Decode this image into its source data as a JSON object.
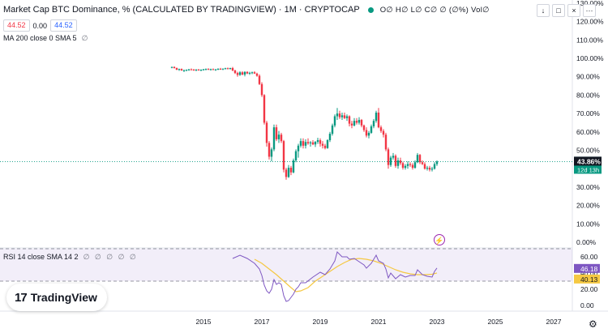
{
  "header": {
    "title": "Market Cap BTC Dominance, % (CALCULATED BY TRADINGVIEW) · 1M · CRYPTOCAP",
    "status_color": "#089981",
    "ohlc": "O∅ H∅ L∅ C∅ ∅ (∅%) Vol∅"
  },
  "quote": {
    "bid": "44.52",
    "spread": "0.00",
    "ask": "44.52",
    "bid_color": "#f23645",
    "ask_color": "#2962ff"
  },
  "indicators": {
    "ma_label": "MA 200 close 0 SMA 5",
    "ma_eye": "∅",
    "rsi_label": "RSI 14 close SMA 14 2",
    "rsi_eye": "∅ ∅ ∅ ∅ ∅"
  },
  "controls": {
    "collapse": "↓",
    "maximize": "□",
    "close": "×",
    "more": "···"
  },
  "event_icon": "⚡",
  "settings_icon": "⚙",
  "brand": {
    "mark": "17",
    "name": "TradingView"
  },
  "chart_data": {
    "type": "candlestick",
    "colors": {
      "up": "#089981",
      "down": "#f23645",
      "rsi": "#7e57c2",
      "rsi_ma": "#f5c842",
      "price_line": "#089981"
    },
    "x_axis_labels": [
      "2015",
      "2017",
      "2019",
      "2021",
      "2023",
      "2025",
      "2027"
    ],
    "price_axis": {
      "ticks": [
        "130.00%",
        "120.00%",
        "110.00%",
        "100.00%",
        "90.00%",
        "80.00%",
        "70.00%",
        "60.00%",
        "50.00%",
        "40.00%",
        "30.00%",
        "20.00%",
        "10.00%",
        "0.00%"
      ],
      "range": [
        0,
        130
      ]
    },
    "current_price": {
      "label": "43.86%",
      "value": 43.86,
      "countdown": "12d 13h"
    },
    "rsi_axis": {
      "ticks": [
        "60.00",
        "40.00",
        "20.00",
        "0.00"
      ],
      "range": [
        0,
        75
      ],
      "band": [
        30,
        70
      ]
    },
    "rsi_values": {
      "rsi": "46.18",
      "rsi_color": "#7e57c2",
      "ma": "40.13",
      "ma_color": "#f5c842"
    },
    "candles": [
      {
        "t": 2013.917,
        "o": 95.0,
        "h": 95.5,
        "l": 94.6,
        "c": 95.3
      },
      {
        "t": 2014.0,
        "o": 95.3,
        "h": 95.6,
        "l": 94.5,
        "c": 94.7
      },
      {
        "t": 2014.083,
        "o": 94.7,
        "h": 95.0,
        "l": 93.6,
        "c": 93.8
      },
      {
        "t": 2014.167,
        "o": 93.8,
        "h": 94.4,
        "l": 93.2,
        "c": 94.2
      },
      {
        "t": 2014.25,
        "o": 94.2,
        "h": 94.5,
        "l": 93.2,
        "c": 93.4
      },
      {
        "t": 2014.333,
        "o": 93.4,
        "h": 93.9,
        "l": 92.6,
        "c": 93.5
      },
      {
        "t": 2014.417,
        "o": 93.5,
        "h": 94.0,
        "l": 93.0,
        "c": 93.7
      },
      {
        "t": 2014.5,
        "o": 93.7,
        "h": 94.3,
        "l": 93.2,
        "c": 94.0
      },
      {
        "t": 2014.583,
        "o": 94.0,
        "h": 94.5,
        "l": 93.5,
        "c": 93.9
      },
      {
        "t": 2014.667,
        "o": 93.9,
        "h": 94.2,
        "l": 93.2,
        "c": 93.6
      },
      {
        "t": 2014.75,
        "o": 93.6,
        "h": 94.1,
        "l": 93.0,
        "c": 93.9
      },
      {
        "t": 2014.833,
        "o": 93.9,
        "h": 94.2,
        "l": 93.3,
        "c": 93.5
      },
      {
        "t": 2014.917,
        "o": 93.5,
        "h": 94.0,
        "l": 93.0,
        "c": 93.8
      },
      {
        "t": 2015.0,
        "o": 93.8,
        "h": 94.3,
        "l": 93.4,
        "c": 94.0
      },
      {
        "t": 2015.083,
        "o": 94.0,
        "h": 94.5,
        "l": 93.5,
        "c": 94.2
      },
      {
        "t": 2015.167,
        "o": 94.2,
        "h": 94.6,
        "l": 93.7,
        "c": 93.9
      },
      {
        "t": 2015.25,
        "o": 93.9,
        "h": 94.4,
        "l": 93.4,
        "c": 94.1
      },
      {
        "t": 2015.333,
        "o": 94.1,
        "h": 94.5,
        "l": 93.6,
        "c": 93.8
      },
      {
        "t": 2015.417,
        "o": 93.8,
        "h": 94.2,
        "l": 93.2,
        "c": 94.0
      },
      {
        "t": 2015.5,
        "o": 94.0,
        "h": 94.6,
        "l": 93.6,
        "c": 94.3
      },
      {
        "t": 2015.583,
        "o": 94.3,
        "h": 94.8,
        "l": 93.8,
        "c": 94.1
      },
      {
        "t": 2015.667,
        "o": 94.1,
        "h": 94.5,
        "l": 93.6,
        "c": 94.4
      },
      {
        "t": 2015.75,
        "o": 94.4,
        "h": 94.9,
        "l": 94.0,
        "c": 94.6
      },
      {
        "t": 2015.833,
        "o": 94.6,
        "h": 95.0,
        "l": 94.0,
        "c": 94.3
      },
      {
        "t": 2015.917,
        "o": 94.3,
        "h": 94.9,
        "l": 93.9,
        "c": 94.7
      },
      {
        "t": 2016.0,
        "o": 94.7,
        "h": 95.3,
        "l": 93.0,
        "c": 93.4
      },
      {
        "t": 2016.083,
        "o": 93.4,
        "h": 93.8,
        "l": 91.5,
        "c": 92.0
      },
      {
        "t": 2016.167,
        "o": 92.0,
        "h": 92.7,
        "l": 90.0,
        "c": 91.0
      },
      {
        "t": 2016.25,
        "o": 91.0,
        "h": 93.0,
        "l": 90.5,
        "c": 92.4
      },
      {
        "t": 2016.333,
        "o": 92.4,
        "h": 93.0,
        "l": 90.8,
        "c": 91.2
      },
      {
        "t": 2016.417,
        "o": 91.2,
        "h": 93.0,
        "l": 90.2,
        "c": 92.6
      },
      {
        "t": 2016.5,
        "o": 92.6,
        "h": 93.0,
        "l": 91.4,
        "c": 91.8
      },
      {
        "t": 2016.583,
        "o": 91.8,
        "h": 92.7,
        "l": 91.0,
        "c": 92.1
      },
      {
        "t": 2016.667,
        "o": 92.1,
        "h": 92.8,
        "l": 91.4,
        "c": 92.4
      },
      {
        "t": 2016.75,
        "o": 92.4,
        "h": 93.0,
        "l": 91.5,
        "c": 91.7
      },
      {
        "t": 2016.833,
        "o": 91.7,
        "h": 92.2,
        "l": 90.0,
        "c": 90.5
      },
      {
        "t": 2016.917,
        "o": 90.5,
        "h": 91.3,
        "l": 85.5,
        "c": 86.0
      },
      {
        "t": 2017.0,
        "o": 86.0,
        "h": 87.0,
        "l": 79.0,
        "c": 80.0
      },
      {
        "t": 2017.083,
        "o": 80.0,
        "h": 80.5,
        "l": 64.0,
        "c": 65.0
      },
      {
        "t": 2017.167,
        "o": 65.0,
        "h": 66.0,
        "l": 52.0,
        "c": 54.0
      },
      {
        "t": 2017.25,
        "o": 54.0,
        "h": 55.0,
        "l": 45.0,
        "c": 46.5
      },
      {
        "t": 2017.333,
        "o": 46.5,
        "h": 51.5,
        "l": 44.0,
        "c": 50.5
      },
      {
        "t": 2017.417,
        "o": 50.5,
        "h": 64.0,
        "l": 49.5,
        "c": 62.5
      },
      {
        "t": 2017.5,
        "o": 62.5,
        "h": 64.0,
        "l": 55.0,
        "c": 56.0
      },
      {
        "t": 2017.583,
        "o": 56.0,
        "h": 60.5,
        "l": 54.0,
        "c": 58.5
      },
      {
        "t": 2017.667,
        "o": 58.5,
        "h": 59.5,
        "l": 54.0,
        "c": 55.0
      },
      {
        "t": 2017.75,
        "o": 55.0,
        "h": 55.6,
        "l": 38.0,
        "c": 39.5
      },
      {
        "t": 2017.833,
        "o": 39.5,
        "h": 40.5,
        "l": 34.0,
        "c": 35.5
      },
      {
        "t": 2017.917,
        "o": 35.5,
        "h": 42.0,
        "l": 35.0,
        "c": 40.5
      },
      {
        "t": 2018.0,
        "o": 40.5,
        "h": 41.5,
        "l": 36.5,
        "c": 38.0
      },
      {
        "t": 2018.083,
        "o": 38.0,
        "h": 45.5,
        "l": 37.5,
        "c": 44.5
      },
      {
        "t": 2018.167,
        "o": 44.5,
        "h": 50.5,
        "l": 43.5,
        "c": 49.5
      },
      {
        "t": 2018.25,
        "o": 49.5,
        "h": 53.5,
        "l": 46.0,
        "c": 52.5
      },
      {
        "t": 2018.333,
        "o": 52.5,
        "h": 56.5,
        "l": 51.5,
        "c": 55.0
      },
      {
        "t": 2018.417,
        "o": 55.0,
        "h": 56.5,
        "l": 51.0,
        "c": 52.5
      },
      {
        "t": 2018.5,
        "o": 52.5,
        "h": 56.0,
        "l": 51.0,
        "c": 54.5
      },
      {
        "t": 2018.583,
        "o": 54.5,
        "h": 56.5,
        "l": 53.0,
        "c": 53.8
      },
      {
        "t": 2018.667,
        "o": 53.8,
        "h": 55.0,
        "l": 52.0,
        "c": 54.3
      },
      {
        "t": 2018.75,
        "o": 54.3,
        "h": 55.5,
        "l": 52.8,
        "c": 53.2
      },
      {
        "t": 2018.833,
        "o": 53.2,
        "h": 55.0,
        "l": 51.8,
        "c": 54.6
      },
      {
        "t": 2018.917,
        "o": 54.6,
        "h": 56.8,
        "l": 53.5,
        "c": 55.5
      },
      {
        "t": 2019.0,
        "o": 55.5,
        "h": 56.5,
        "l": 52.0,
        "c": 53.5
      },
      {
        "t": 2019.083,
        "o": 53.5,
        "h": 55.0,
        "l": 51.0,
        "c": 52.5
      },
      {
        "t": 2019.167,
        "o": 52.5,
        "h": 53.5,
        "l": 50.5,
        "c": 51.2
      },
      {
        "t": 2019.25,
        "o": 51.2,
        "h": 56.0,
        "l": 50.8,
        "c": 55.5
      },
      {
        "t": 2019.333,
        "o": 55.5,
        "h": 60.0,
        "l": 54.5,
        "c": 59.0
      },
      {
        "t": 2019.417,
        "o": 59.0,
        "h": 64.5,
        "l": 58.0,
        "c": 63.5
      },
      {
        "t": 2019.5,
        "o": 63.5,
        "h": 69.5,
        "l": 62.5,
        "c": 68.5
      },
      {
        "t": 2019.583,
        "o": 68.5,
        "h": 73.0,
        "l": 66.5,
        "c": 70.0
      },
      {
        "t": 2019.667,
        "o": 70.0,
        "h": 71.5,
        "l": 67.0,
        "c": 68.0
      },
      {
        "t": 2019.75,
        "o": 68.0,
        "h": 70.5,
        "l": 66.5,
        "c": 69.0
      },
      {
        "t": 2019.833,
        "o": 69.0,
        "h": 70.5,
        "l": 67.0,
        "c": 67.5
      },
      {
        "t": 2019.917,
        "o": 67.5,
        "h": 69.5,
        "l": 66.0,
        "c": 68.5
      },
      {
        "t": 2020.0,
        "o": 68.5,
        "h": 69.0,
        "l": 63.0,
        "c": 64.5
      },
      {
        "t": 2020.083,
        "o": 64.5,
        "h": 66.0,
        "l": 62.0,
        "c": 63.5
      },
      {
        "t": 2020.167,
        "o": 63.5,
        "h": 67.5,
        "l": 63.0,
        "c": 66.0
      },
      {
        "t": 2020.25,
        "o": 66.0,
        "h": 67.5,
        "l": 64.0,
        "c": 65.0
      },
      {
        "t": 2020.333,
        "o": 65.0,
        "h": 68.0,
        "l": 64.0,
        "c": 66.5
      },
      {
        "t": 2020.417,
        "o": 66.5,
        "h": 67.0,
        "l": 62.5,
        "c": 63.5
      },
      {
        "t": 2020.5,
        "o": 63.5,
        "h": 64.0,
        "l": 60.0,
        "c": 61.0
      },
      {
        "t": 2020.583,
        "o": 61.0,
        "h": 62.5,
        "l": 57.0,
        "c": 58.0
      },
      {
        "t": 2020.667,
        "o": 58.0,
        "h": 60.5,
        "l": 56.5,
        "c": 59.5
      },
      {
        "t": 2020.75,
        "o": 59.5,
        "h": 64.0,
        "l": 59.0,
        "c": 63.0
      },
      {
        "t": 2020.833,
        "o": 63.0,
        "h": 67.0,
        "l": 62.0,
        "c": 66.0
      },
      {
        "t": 2020.917,
        "o": 66.0,
        "h": 71.5,
        "l": 65.0,
        "c": 70.5
      },
      {
        "t": 2021.0,
        "o": 70.5,
        "h": 73.0,
        "l": 62.0,
        "c": 62.5
      },
      {
        "t": 2021.083,
        "o": 62.5,
        "h": 63.5,
        "l": 59.5,
        "c": 60.5
      },
      {
        "t": 2021.167,
        "o": 60.5,
        "h": 61.5,
        "l": 57.0,
        "c": 58.5
      },
      {
        "t": 2021.25,
        "o": 58.5,
        "h": 59.5,
        "l": 49.5,
        "c": 50.5
      },
      {
        "t": 2021.333,
        "o": 50.5,
        "h": 51.5,
        "l": 40.0,
        "c": 42.0
      },
      {
        "t": 2021.417,
        "o": 42.0,
        "h": 47.0,
        "l": 41.0,
        "c": 46.0
      },
      {
        "t": 2021.5,
        "o": 46.0,
        "h": 48.5,
        "l": 45.0,
        "c": 47.0
      },
      {
        "t": 2021.583,
        "o": 47.0,
        "h": 47.8,
        "l": 40.5,
        "c": 41.5
      },
      {
        "t": 2021.667,
        "o": 41.5,
        "h": 46.0,
        "l": 40.0,
        "c": 44.5
      },
      {
        "t": 2021.75,
        "o": 44.5,
        "h": 46.0,
        "l": 42.0,
        "c": 43.0
      },
      {
        "t": 2021.833,
        "o": 43.0,
        "h": 43.8,
        "l": 39.5,
        "c": 40.5
      },
      {
        "t": 2021.917,
        "o": 40.5,
        "h": 42.5,
        "l": 39.5,
        "c": 41.5
      },
      {
        "t": 2022.0,
        "o": 41.5,
        "h": 44.0,
        "l": 40.0,
        "c": 42.5
      },
      {
        "t": 2022.083,
        "o": 42.5,
        "h": 43.5,
        "l": 41.0,
        "c": 42.0
      },
      {
        "t": 2022.167,
        "o": 42.0,
        "h": 43.0,
        "l": 39.5,
        "c": 40.5
      },
      {
        "t": 2022.25,
        "o": 40.5,
        "h": 44.5,
        "l": 40.0,
        "c": 43.5
      },
      {
        "t": 2022.333,
        "o": 43.5,
        "h": 48.5,
        "l": 43.0,
        "c": 47.5
      },
      {
        "t": 2022.417,
        "o": 47.5,
        "h": 48.0,
        "l": 42.5,
        "c": 43.5
      },
      {
        "t": 2022.5,
        "o": 43.5,
        "h": 44.5,
        "l": 42.0,
        "c": 42.5
      },
      {
        "t": 2022.583,
        "o": 42.5,
        "h": 43.5,
        "l": 39.5,
        "c": 40.0
      },
      {
        "t": 2022.667,
        "o": 40.0,
        "h": 41.5,
        "l": 39.0,
        "c": 40.5
      },
      {
        "t": 2022.75,
        "o": 40.5,
        "h": 41.5,
        "l": 38.5,
        "c": 39.5
      },
      {
        "t": 2022.833,
        "o": 39.5,
        "h": 41.0,
        "l": 38.5,
        "c": 40.0
      },
      {
        "t": 2022.917,
        "o": 40.0,
        "h": 43.5,
        "l": 39.5,
        "c": 42.5
      },
      {
        "t": 2023.0,
        "o": 42.5,
        "h": 44.5,
        "l": 41.5,
        "c": 43.86
      }
    ],
    "rsi_series": [
      {
        "t": 2016.0,
        "v": 58
      },
      {
        "t": 2016.25,
        "v": 62
      },
      {
        "t": 2016.5,
        "v": 58
      },
      {
        "t": 2016.75,
        "v": 52
      },
      {
        "t": 2016.917,
        "v": 45
      },
      {
        "t": 2017.0,
        "v": 37
      },
      {
        "t": 2017.083,
        "v": 25
      },
      {
        "t": 2017.167,
        "v": 18
      },
      {
        "t": 2017.25,
        "v": 15
      },
      {
        "t": 2017.333,
        "v": 20
      },
      {
        "t": 2017.417,
        "v": 32
      },
      {
        "t": 2017.5,
        "v": 26
      },
      {
        "t": 2017.583,
        "v": 28
      },
      {
        "t": 2017.667,
        "v": 26
      },
      {
        "t": 2017.75,
        "v": 12
      },
      {
        "t": 2017.833,
        "v": 5
      },
      {
        "t": 2017.917,
        "v": 6
      },
      {
        "t": 2018.0,
        "v": 10
      },
      {
        "t": 2018.083,
        "v": 14
      },
      {
        "t": 2018.167,
        "v": 20
      },
      {
        "t": 2018.25,
        "v": 23
      },
      {
        "t": 2018.333,
        "v": 28
      },
      {
        "t": 2018.5,
        "v": 28
      },
      {
        "t": 2018.75,
        "v": 35
      },
      {
        "t": 2019.0,
        "v": 41
      },
      {
        "t": 2019.167,
        "v": 38
      },
      {
        "t": 2019.333,
        "v": 45
      },
      {
        "t": 2019.5,
        "v": 55
      },
      {
        "t": 2019.583,
        "v": 66
      },
      {
        "t": 2019.75,
        "v": 60
      },
      {
        "t": 2019.917,
        "v": 60
      },
      {
        "t": 2020.0,
        "v": 57
      },
      {
        "t": 2020.167,
        "v": 58
      },
      {
        "t": 2020.333,
        "v": 54
      },
      {
        "t": 2020.5,
        "v": 50
      },
      {
        "t": 2020.583,
        "v": 46
      },
      {
        "t": 2020.75,
        "v": 52
      },
      {
        "t": 2020.917,
        "v": 62
      },
      {
        "t": 2021.0,
        "v": 55
      },
      {
        "t": 2021.167,
        "v": 52
      },
      {
        "t": 2021.25,
        "v": 45
      },
      {
        "t": 2021.333,
        "v": 34
      },
      {
        "t": 2021.417,
        "v": 40
      },
      {
        "t": 2021.583,
        "v": 33
      },
      {
        "t": 2021.75,
        "v": 38
      },
      {
        "t": 2021.917,
        "v": 35
      },
      {
        "t": 2022.083,
        "v": 37
      },
      {
        "t": 2022.25,
        "v": 37
      },
      {
        "t": 2022.333,
        "v": 44
      },
      {
        "t": 2022.5,
        "v": 38
      },
      {
        "t": 2022.667,
        "v": 36
      },
      {
        "t": 2022.833,
        "v": 35
      },
      {
        "t": 2022.917,
        "v": 42
      },
      {
        "t": 2023.0,
        "v": 46.18
      }
    ],
    "rsi_ma_series": [
      {
        "t": 2016.75,
        "v": 57
      },
      {
        "t": 2017.0,
        "v": 52
      },
      {
        "t": 2017.25,
        "v": 45
      },
      {
        "t": 2017.5,
        "v": 38
      },
      {
        "t": 2017.75,
        "v": 30
      },
      {
        "t": 2018.0,
        "v": 22
      },
      {
        "t": 2018.167,
        "v": 17
      },
      {
        "t": 2018.333,
        "v": 18
      },
      {
        "t": 2018.583,
        "v": 22
      },
      {
        "t": 2018.833,
        "v": 30
      },
      {
        "t": 2019.083,
        "v": 36
      },
      {
        "t": 2019.333,
        "v": 42
      },
      {
        "t": 2019.583,
        "v": 48
      },
      {
        "t": 2019.833,
        "v": 53
      },
      {
        "t": 2020.083,
        "v": 57
      },
      {
        "t": 2020.333,
        "v": 58
      },
      {
        "t": 2020.583,
        "v": 57
      },
      {
        "t": 2020.833,
        "v": 55
      },
      {
        "t": 2021.083,
        "v": 52
      },
      {
        "t": 2021.333,
        "v": 48
      },
      {
        "t": 2021.583,
        "v": 44
      },
      {
        "t": 2021.833,
        "v": 41
      },
      {
        "t": 2022.083,
        "v": 39
      },
      {
        "t": 2022.333,
        "v": 38
      },
      {
        "t": 2022.583,
        "v": 38
      },
      {
        "t": 2022.833,
        "v": 38.5
      },
      {
        "t": 2023.0,
        "v": 40.13
      }
    ]
  }
}
